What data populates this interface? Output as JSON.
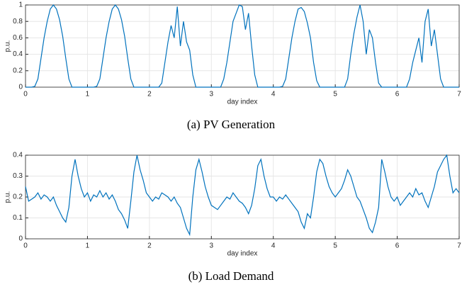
{
  "chart_data": [
    {
      "type": "line",
      "caption": "(a) PV Generation",
      "xlabel": "day index",
      "ylabel": "p.u.",
      "color": "#0072bd",
      "grid": true,
      "xlim": [
        0,
        7
      ],
      "xticks": [
        0,
        1,
        2,
        3,
        4,
        5,
        6,
        7
      ],
      "ylim": [
        0,
        1
      ],
      "yticks": [
        0,
        0.2,
        0.4,
        0.6,
        0.8,
        1
      ],
      "x": [
        0,
        0.05,
        0.1,
        0.15,
        0.2,
        0.25,
        0.3,
        0.35,
        0.4,
        0.45,
        0.5,
        0.55,
        0.6,
        0.65,
        0.7,
        0.75,
        0.8,
        0.85,
        0.9,
        0.95,
        1,
        1.05,
        1.1,
        1.15,
        1.2,
        1.25,
        1.3,
        1.35,
        1.4,
        1.45,
        1.5,
        1.55,
        1.6,
        1.65,
        1.7,
        1.75,
        1.8,
        1.85,
        1.9,
        1.95,
        2,
        2.05,
        2.1,
        2.15,
        2.2,
        2.25,
        2.3,
        2.35,
        2.4,
        2.45,
        2.5,
        2.55,
        2.6,
        2.65,
        2.7,
        2.75,
        2.8,
        2.85,
        2.9,
        2.95,
        3,
        3.05,
        3.1,
        3.15,
        3.2,
        3.25,
        3.3,
        3.35,
        3.4,
        3.45,
        3.5,
        3.55,
        3.6,
        3.65,
        3.7,
        3.75,
        3.8,
        3.85,
        3.9,
        3.95,
        4,
        4.05,
        4.1,
        4.15,
        4.2,
        4.25,
        4.3,
        4.35,
        4.4,
        4.45,
        4.5,
        4.55,
        4.6,
        4.65,
        4.7,
        4.75,
        4.8,
        4.85,
        4.9,
        4.95,
        5,
        5.05,
        5.1,
        5.15,
        5.2,
        5.25,
        5.3,
        5.35,
        5.4,
        5.45,
        5.5,
        5.55,
        5.6,
        5.65,
        5.7,
        5.75,
        5.8,
        5.85,
        5.9,
        5.95,
        6,
        6.05,
        6.1,
        6.15,
        6.2,
        6.25,
        6.3,
        6.35,
        6.4,
        6.45,
        6.5,
        6.55,
        6.6,
        6.65,
        6.7,
        6.75,
        6.8,
        6.85,
        6.9,
        6.95,
        7
      ],
      "values": [
        0,
        0,
        0,
        0.01,
        0.1,
        0.35,
        0.6,
        0.8,
        0.95,
        1,
        0.95,
        0.82,
        0.62,
        0.35,
        0.1,
        0,
        0,
        0,
        0,
        0,
        0,
        0,
        0,
        0.01,
        0.1,
        0.35,
        0.6,
        0.8,
        0.95,
        1,
        0.95,
        0.82,
        0.62,
        0.35,
        0.1,
        0,
        0,
        0,
        0,
        0,
        0,
        0,
        0,
        0,
        0.05,
        0.3,
        0.55,
        0.75,
        0.6,
        0.98,
        0.5,
        0.8,
        0.55,
        0.45,
        0.15,
        0,
        0,
        0,
        0,
        0,
        0,
        0,
        0,
        0,
        0.1,
        0.3,
        0.55,
        0.8,
        0.9,
        1,
        0.98,
        0.7,
        0.9,
        0.5,
        0.15,
        0,
        0,
        0,
        0,
        0,
        0,
        0,
        0,
        0.01,
        0.1,
        0.35,
        0.6,
        0.8,
        0.95,
        0.97,
        0.92,
        0.78,
        0.6,
        0.3,
        0.08,
        0,
        0,
        0,
        0,
        0,
        0,
        0,
        0,
        0,
        0.1,
        0.4,
        0.65,
        0.85,
        1,
        0.8,
        0.4,
        0.7,
        0.6,
        0.3,
        0.05,
        0,
        0,
        0,
        0,
        0,
        0,
        0,
        0,
        0,
        0.1,
        0.3,
        0.45,
        0.6,
        0.3,
        0.8,
        0.95,
        0.5,
        0.7,
        0.4,
        0.1,
        0,
        0,
        0,
        0,
        0,
        0
      ]
    },
    {
      "type": "line",
      "caption": "(b) Load Demand",
      "xlabel": "day index",
      "ylabel": "p.u.",
      "color": "#0072bd",
      "grid": true,
      "xlim": [
        0,
        7
      ],
      "xticks": [
        0,
        1,
        2,
        3,
        4,
        5,
        6,
        7
      ],
      "ylim": [
        0,
        0.4
      ],
      "yticks": [
        0,
        0.1,
        0.2,
        0.3,
        0.4
      ],
      "x": [
        0,
        0.05,
        0.1,
        0.15,
        0.2,
        0.25,
        0.3,
        0.35,
        0.4,
        0.45,
        0.5,
        0.55,
        0.6,
        0.65,
        0.7,
        0.75,
        0.8,
        0.85,
        0.9,
        0.95,
        1,
        1.05,
        1.1,
        1.15,
        1.2,
        1.25,
        1.3,
        1.35,
        1.4,
        1.45,
        1.5,
        1.55,
        1.6,
        1.65,
        1.7,
        1.75,
        1.8,
        1.85,
        1.9,
        1.95,
        2,
        2.05,
        2.1,
        2.15,
        2.2,
        2.25,
        2.3,
        2.35,
        2.4,
        2.45,
        2.5,
        2.55,
        2.6,
        2.65,
        2.7,
        2.75,
        2.8,
        2.85,
        2.9,
        2.95,
        3,
        3.05,
        3.1,
        3.15,
        3.2,
        3.25,
        3.3,
        3.35,
        3.4,
        3.45,
        3.5,
        3.55,
        3.6,
        3.65,
        3.7,
        3.75,
        3.8,
        3.85,
        3.9,
        3.95,
        4,
        4.05,
        4.1,
        4.15,
        4.2,
        4.25,
        4.3,
        4.35,
        4.4,
        4.45,
        4.5,
        4.55,
        4.6,
        4.65,
        4.7,
        4.75,
        4.8,
        4.85,
        4.9,
        4.95,
        5,
        5.05,
        5.1,
        5.15,
        5.2,
        5.25,
        5.3,
        5.35,
        5.4,
        5.45,
        5.5,
        5.55,
        5.6,
        5.65,
        5.7,
        5.75,
        5.8,
        5.85,
        5.9,
        5.95,
        6,
        6.05,
        6.1,
        6.15,
        6.2,
        6.25,
        6.3,
        6.35,
        6.4,
        6.45,
        6.5,
        6.55,
        6.6,
        6.65,
        6.7,
        6.75,
        6.8,
        6.85,
        6.9,
        6.95,
        7
      ],
      "values": [
        0.25,
        0.18,
        0.19,
        0.2,
        0.22,
        0.19,
        0.21,
        0.2,
        0.18,
        0.2,
        0.16,
        0.13,
        0.1,
        0.08,
        0.15,
        0.3,
        0.38,
        0.3,
        0.24,
        0.2,
        0.22,
        0.18,
        0.21,
        0.2,
        0.23,
        0.2,
        0.22,
        0.19,
        0.21,
        0.18,
        0.14,
        0.12,
        0.09,
        0.05,
        0.18,
        0.32,
        0.4,
        0.33,
        0.28,
        0.22,
        0.2,
        0.18,
        0.2,
        0.19,
        0.22,
        0.21,
        0.2,
        0.18,
        0.2,
        0.17,
        0.15,
        0.1,
        0.05,
        0.02,
        0.2,
        0.33,
        0.38,
        0.32,
        0.25,
        0.2,
        0.16,
        0.15,
        0.14,
        0.16,
        0.18,
        0.2,
        0.19,
        0.22,
        0.2,
        0.18,
        0.17,
        0.15,
        0.12,
        0.16,
        0.24,
        0.35,
        0.38,
        0.3,
        0.24,
        0.2,
        0.2,
        0.18,
        0.2,
        0.19,
        0.21,
        0.19,
        0.17,
        0.15,
        0.13,
        0.08,
        0.05,
        0.12,
        0.1,
        0.2,
        0.32,
        0.38,
        0.36,
        0.3,
        0.25,
        0.22,
        0.2,
        0.22,
        0.24,
        0.28,
        0.33,
        0.3,
        0.25,
        0.2,
        0.18,
        0.14,
        0.1,
        0.05,
        0.03,
        0.08,
        0.15,
        0.38,
        0.32,
        0.25,
        0.2,
        0.18,
        0.2,
        0.16,
        0.18,
        0.2,
        0.22,
        0.2,
        0.24,
        0.21,
        0.22,
        0.18,
        0.15,
        0.2,
        0.25,
        0.32,
        0.35,
        0.38,
        0.4,
        0.3,
        0.22,
        0.24,
        0.22
      ]
    }
  ]
}
